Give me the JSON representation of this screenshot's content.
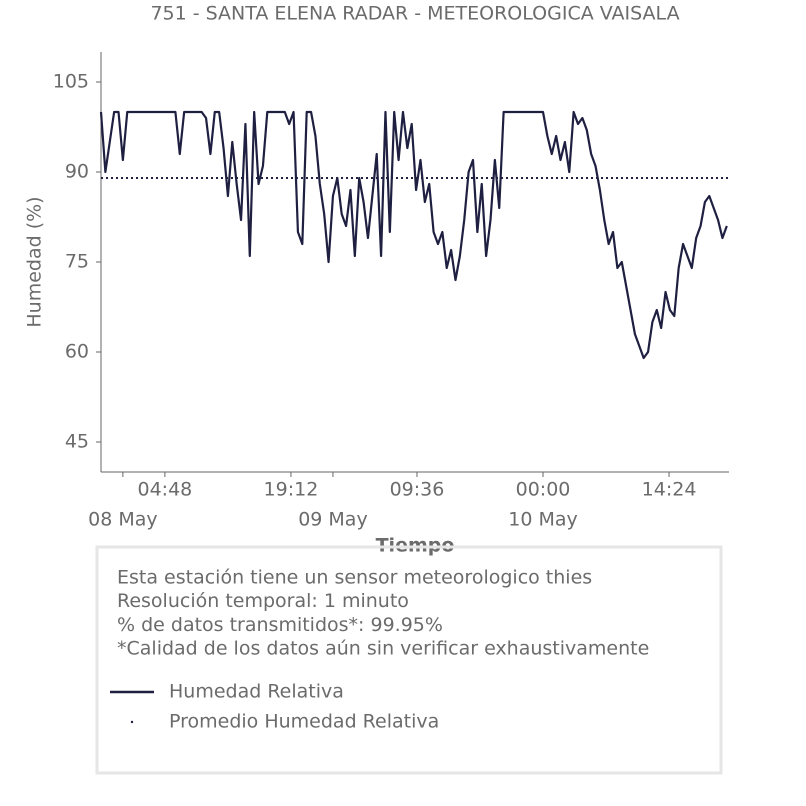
{
  "chart_data": {
    "type": "line",
    "title": "751 - SANTA ELENA RADAR - METEOROLOGICA VAISALA",
    "xlabel": "Tiempo",
    "ylabel": "Humedad (%)",
    "ylim": [
      40,
      110
    ],
    "yticks": [
      45,
      60,
      75,
      90,
      105
    ],
    "xlim": [
      "07 May 21:30",
      "10 May 21:15"
    ],
    "xticks": [
      {
        "value": "08 May 04:48",
        "label": "04:48"
      },
      {
        "value": "08 May 19:12",
        "label": "19:12"
      },
      {
        "value": "09 May 09:36",
        "label": "09:36"
      },
      {
        "value": "10 May 00:00",
        "label": "00:00"
      },
      {
        "value": "10 May 14:24",
        "label": "14:24"
      }
    ],
    "xticks_days": [
      {
        "value": "08 May 00:00",
        "label": "08 May"
      },
      {
        "value": "09 May 00:00",
        "label": "09 May"
      },
      {
        "value": "10 May 00:00",
        "label": "10 May"
      }
    ],
    "x": [
      "07 May 21:30",
      "07 May 22:00",
      "07 May 22:30",
      "07 May 23:00",
      "07 May 23:30",
      "08 May 00:00",
      "08 May 00:30",
      "08 May 01:00",
      "08 May 01:30",
      "08 May 02:00",
      "08 May 02:30",
      "08 May 03:00",
      "08 May 03:30",
      "08 May 04:00",
      "08 May 04:30",
      "08 May 05:00",
      "08 May 05:30",
      "08 May 06:00",
      "08 May 06:30",
      "08 May 07:00",
      "08 May 07:30",
      "08 May 08:00",
      "08 May 08:30",
      "08 May 09:00",
      "08 May 09:30",
      "08 May 10:00",
      "08 May 10:30",
      "08 May 11:00",
      "08 May 11:30",
      "08 May 12:00",
      "08 May 12:30",
      "08 May 13:00",
      "08 May 13:30",
      "08 May 14:00",
      "08 May 14:30",
      "08 May 15:00",
      "08 May 15:30",
      "08 May 16:00",
      "08 May 16:30",
      "08 May 17:00",
      "08 May 17:30",
      "08 May 18:00",
      "08 May 18:30",
      "08 May 19:00",
      "08 May 19:30",
      "08 May 20:00",
      "08 May 20:30",
      "08 May 21:00",
      "08 May 21:30",
      "08 May 22:00",
      "08 May 22:30",
      "08 May 23:00",
      "08 May 23:30",
      "09 May 00:00",
      "09 May 00:30",
      "09 May 01:00",
      "09 May 01:30",
      "09 May 02:00",
      "09 May 02:30",
      "09 May 03:00",
      "09 May 03:30",
      "09 May 04:00",
      "09 May 04:30",
      "09 May 05:00",
      "09 May 05:30",
      "09 May 06:00",
      "09 May 06:30",
      "09 May 07:00",
      "09 May 07:30",
      "09 May 08:00",
      "09 May 08:30",
      "09 May 09:00",
      "09 May 09:30",
      "09 May 10:00",
      "09 May 10:30",
      "09 May 11:00",
      "09 May 11:30",
      "09 May 12:00",
      "09 May 12:30",
      "09 May 13:00",
      "09 May 13:30",
      "09 May 14:00",
      "09 May 14:30",
      "09 May 15:00",
      "09 May 15:30",
      "09 May 16:00",
      "09 May 16:30",
      "09 May 17:00",
      "09 May 17:30",
      "09 May 18:00",
      "09 May 18:30",
      "09 May 19:00",
      "09 May 19:30",
      "09 May 20:00",
      "09 May 20:30",
      "09 May 21:00",
      "09 May 21:30",
      "09 May 22:00",
      "09 May 22:30",
      "09 May 23:00",
      "09 May 23:30",
      "10 May 00:00",
      "10 May 00:30",
      "10 May 01:00",
      "10 May 01:30",
      "10 May 02:00",
      "10 May 02:30",
      "10 May 03:00",
      "10 May 03:30",
      "10 May 04:00",
      "10 May 04:30",
      "10 May 05:00",
      "10 May 05:30",
      "10 May 06:00",
      "10 May 06:30",
      "10 May 07:00",
      "10 May 07:30",
      "10 May 08:00",
      "10 May 08:30",
      "10 May 09:00",
      "10 May 09:30",
      "10 May 10:00",
      "10 May 10:30",
      "10 May 11:00",
      "10 May 11:30",
      "10 May 12:00",
      "10 May 12:30",
      "10 May 13:00",
      "10 May 13:30",
      "10 May 14:00",
      "10 May 14:30",
      "10 May 15:00",
      "10 May 15:30",
      "10 May 16:00",
      "10 May 16:30",
      "10 May 17:00",
      "10 May 17:30",
      "10 May 18:00",
      "10 May 18:30",
      "10 May 19:00",
      "10 May 19:30",
      "10 May 20:00",
      "10 May 20:30",
      "10 May 21:00"
    ],
    "series": [
      {
        "name": "Humedad Relativa",
        "color": "#1f2041",
        "values": [
          100,
          90,
          95,
          100,
          100,
          92,
          100,
          100,
          100,
          100,
          100,
          100,
          100,
          100,
          100,
          100,
          100,
          100,
          93,
          100,
          100,
          100,
          100,
          100,
          99,
          93,
          100,
          100,
          94,
          86,
          95,
          88,
          82,
          98,
          76,
          100,
          88,
          91,
          100,
          100,
          100,
          100,
          100,
          98,
          100,
          80,
          78,
          100,
          100,
          96,
          88,
          83,
          75,
          86,
          89,
          83,
          81,
          87,
          76,
          89,
          85,
          79,
          86,
          93,
          76,
          100,
          80,
          100,
          92,
          100,
          94,
          98,
          87,
          92,
          85,
          88,
          80,
          78,
          80,
          74,
          77,
          72,
          76,
          82,
          90,
          92,
          80,
          88,
          76,
          82,
          92,
          84,
          100,
          100,
          100,
          100,
          100,
          100,
          100,
          100,
          100,
          100,
          96,
          93,
          96,
          92,
          95,
          90,
          100,
          98,
          99,
          97,
          93,
          91,
          87,
          82,
          78,
          80,
          74,
          75,
          71,
          67,
          63,
          61,
          59,
          60,
          65,
          67,
          64,
          70,
          67,
          66,
          74,
          78,
          76,
          74,
          79,
          81,
          85,
          86,
          84,
          82,
          79,
          81
        ]
      },
      {
        "name": "Promedio Humedad Relativa",
        "color": "#1f2041",
        "value": 89,
        "dash": "dotted"
      }
    ],
    "notes": [
      "Esta estación tiene un sensor meteorologico thies",
      "Resolución temporal: 1 minuto",
      "% de datos transmitidos*: 99.95%",
      "*Calidad de los datos aún sin verificar exhaustivamente"
    ]
  }
}
